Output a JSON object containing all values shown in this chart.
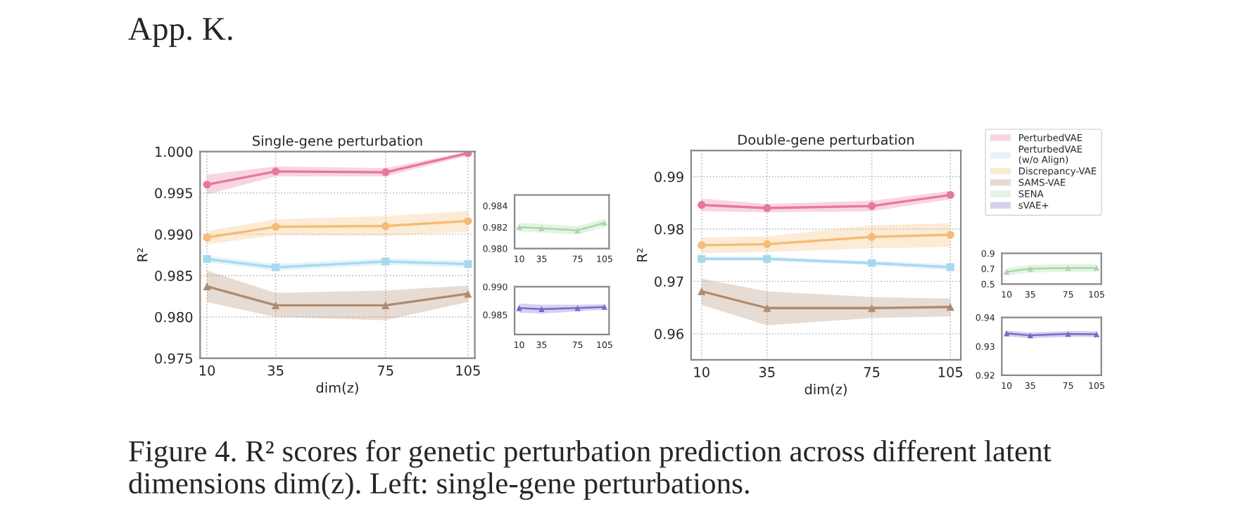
{
  "chart_data": [
    {
      "type": "line",
      "title": "Single-gene perturbation",
      "xlabel": "dim(z)",
      "ylabel": "R²",
      "x": [
        10,
        35,
        75,
        105
      ],
      "xlim": [
        7.5,
        107.5
      ],
      "xticks": [
        10,
        35,
        75,
        105
      ],
      "ylim": [
        0.975,
        1.0
      ],
      "yticks": [
        {
          "value": 0.975,
          "label": "0.975"
        },
        {
          "value": 0.98,
          "label": "0.980"
        },
        {
          "value": 0.985,
          "label": "0.985"
        },
        {
          "value": 0.99,
          "label": "0.990"
        },
        {
          "value": 0.995,
          "label": "0.995"
        },
        {
          "value": 1.0,
          "label": "1.000"
        }
      ],
      "grid": true,
      "annotations": [
        "App. K.",
        "Figure 4. R² scores for genetic perturbation prediction across different latent dimensions dim(z). Left: single-gene perturbations."
      ],
      "series": [
        {
          "color": "#e8779a",
          "marker": "circle",
          "values": [
            0.996,
            0.9976,
            0.9975,
            0.9998
          ],
          "lower": [
            0.9948,
            0.997,
            0.997,
            0.9995
          ],
          "upper": [
            0.9972,
            0.9982,
            0.998,
            1.0
          ]
        },
        {
          "color": "#a8d8f0",
          "marker": "square",
          "values": [
            0.987,
            0.986,
            0.9867,
            0.9864
          ],
          "lower": [
            0.9866,
            0.9856,
            0.9863,
            0.986
          ],
          "upper": [
            0.9874,
            0.9864,
            0.9871,
            0.9868
          ]
        },
        {
          "color": "#f5bc73",
          "marker": "circle",
          "values": [
            0.9896,
            0.9909,
            0.991,
            0.9916
          ],
          "lower": [
            0.9888,
            0.9899,
            0.9898,
            0.9903
          ],
          "upper": [
            0.9904,
            0.9918,
            0.9922,
            0.9928
          ]
        },
        {
          "color": "#b08b6e",
          "marker": "triangle",
          "values": [
            0.9837,
            0.9814,
            0.9814,
            0.9828
          ],
          "lower": [
            0.9818,
            0.98,
            0.9796,
            0.9818
          ],
          "upper": [
            0.9856,
            0.9829,
            0.9832,
            0.9838
          ]
        }
      ]
    },
    {
      "type": "line",
      "x": [
        10,
        35,
        75,
        105
      ],
      "xlim": [
        5,
        110
      ],
      "xticks": [
        10,
        35,
        75,
        105
      ],
      "ylim": [
        0.98,
        0.985
      ],
      "yticks": [
        {
          "value": 0.98,
          "label": "0.980"
        },
        {
          "value": 0.982,
          "label": "0.982"
        },
        {
          "value": 0.984,
          "label": "0.984"
        }
      ],
      "series": [
        {
          "color": "#a6d8a6",
          "marker": "triangle",
          "values": [
            0.982,
            0.9819,
            0.9817,
            0.9824
          ],
          "lower": [
            0.9816,
            0.9815,
            0.9813,
            0.982
          ],
          "upper": [
            0.9824,
            0.9823,
            0.9821,
            0.9828
          ]
        }
      ]
    },
    {
      "type": "line",
      "x": [
        10,
        35,
        75,
        105
      ],
      "xlim": [
        5,
        110
      ],
      "xticks": [
        10,
        35,
        75,
        105
      ],
      "ylim": [
        0.9815,
        0.99
      ],
      "yticks": [
        {
          "value": 0.985,
          "label": "0.985"
        },
        {
          "value": 0.99,
          "label": "0.990"
        }
      ],
      "series": [
        {
          "color": "#7b68c8",
          "marker": "triangle",
          "values": [
            0.9862,
            0.986,
            0.9862,
            0.9864
          ],
          "lower": [
            0.9854,
            0.9852,
            0.9856,
            0.9859
          ],
          "upper": [
            0.987,
            0.9868,
            0.9868,
            0.9869
          ]
        }
      ]
    },
    {
      "type": "line",
      "title": "Double-gene perturbation",
      "xlabel": "dim(z)",
      "ylabel": "R²",
      "x": [
        10,
        35,
        75,
        105
      ],
      "xlim": [
        6,
        109
      ],
      "xticks": [
        10,
        35,
        75,
        105
      ],
      "ylim": [
        0.955,
        0.995
      ],
      "yticks": [
        0.96,
        0.97,
        0.98,
        0.99
      ],
      "grid": true,
      "legend": "right",
      "series": [
        {
          "name": "PerturbedVAE",
          "color": "#e8779a",
          "marker": "circle",
          "values": [
            0.9846,
            0.984,
            0.9844,
            0.9865
          ],
          "lower": [
            0.9834,
            0.9832,
            0.9834,
            0.9857
          ],
          "upper": [
            0.9858,
            0.9848,
            0.9854,
            0.9873
          ]
        },
        {
          "name": "PerturbedVAE\n(w/o Align)",
          "color": "#a8d8f0",
          "marker": "square",
          "values": [
            0.9743,
            0.9743,
            0.9735,
            0.9727
          ],
          "lower": [
            0.9739,
            0.9739,
            0.9731,
            0.9721
          ],
          "upper": [
            0.9747,
            0.9747,
            0.9739,
            0.9733
          ]
        },
        {
          "name": "Discrepancy-VAE",
          "color": "#f5bc73",
          "marker": "circle",
          "values": [
            0.9769,
            0.9771,
            0.9785,
            0.9789
          ],
          "lower": [
            0.9754,
            0.9756,
            0.9763,
            0.9766
          ],
          "upper": [
            0.9784,
            0.9786,
            0.9807,
            0.9811
          ]
        },
        {
          "name": "SAMS-VAE",
          "color": "#b08b6e",
          "marker": "triangle",
          "values": [
            0.9681,
            0.9649,
            0.9649,
            0.9651
          ],
          "lower": [
            0.9655,
            0.9616,
            0.963,
            0.9633
          ],
          "upper": [
            0.9705,
            0.9681,
            0.967,
            0.9667
          ]
        }
      ]
    },
    {
      "type": "line",
      "x": [
        10,
        35,
        75,
        105
      ],
      "xlim": [
        5,
        110
      ],
      "xticks": [
        10,
        35,
        75,
        105
      ],
      "ylim": [
        0.5,
        0.9
      ],
      "yticks": [
        0.5,
        0.7,
        0.9
      ],
      "series": [
        {
          "name": "SENA",
          "color": "#a6d8a6",
          "marker": "triangle",
          "values": [
            0.66,
            0.7,
            0.71,
            0.71
          ],
          "lower": [
            0.61,
            0.65,
            0.66,
            0.66
          ],
          "upper": [
            0.71,
            0.75,
            0.76,
            0.76
          ]
        }
      ]
    },
    {
      "type": "line",
      "x": [
        10,
        35,
        75,
        105
      ],
      "xlim": [
        5,
        110
      ],
      "xticks": [
        10,
        35,
        75,
        105
      ],
      "ylim": [
        0.92,
        0.94
      ],
      "yticks": [
        0.92,
        0.93,
        0.94
      ],
      "series": [
        {
          "name": "sVAE+",
          "color": "#7b68c8",
          "marker": "triangle",
          "values": [
            0.9345,
            0.9338,
            0.9343,
            0.9342
          ],
          "lower": [
            0.9335,
            0.9328,
            0.9333,
            0.9332
          ],
          "upper": [
            0.9355,
            0.9348,
            0.9353,
            0.9352
          ]
        }
      ]
    }
  ]
}
